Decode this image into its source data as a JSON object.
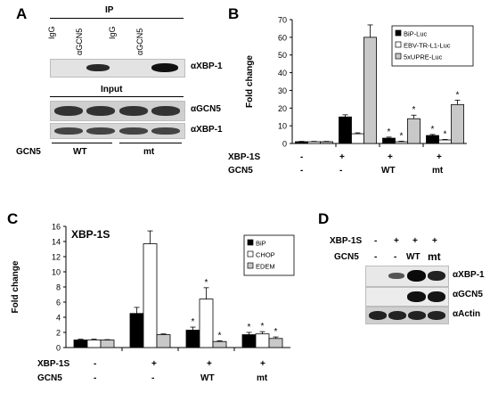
{
  "panels": {
    "A": {
      "letter": "A",
      "ip_title": "IP",
      "ip_lanes": [
        "IgG",
        "αGCN5",
        "IgG",
        "αGCN5"
      ],
      "ip_blot_label": "αXBP-1",
      "input_title": "Input",
      "input_labels": [
        "αGCN5",
        "αXBP-1"
      ],
      "row_label": "GCN5",
      "groups": [
        "WT",
        "mt"
      ]
    },
    "B": {
      "letter": "B",
      "row_labels": [
        "XBP-1S",
        "GCN5"
      ],
      "xbp_signs": [
        "-",
        "+",
        "+",
        "+"
      ],
      "gcn5_signs": [
        "-",
        "-",
        "WT",
        "mt"
      ]
    },
    "C": {
      "letter": "C",
      "row_labels": [
        "XBP-1S",
        "GCN5"
      ],
      "xbp_signs": [
        "-",
        "+",
        "+",
        "+"
      ],
      "gcn5_signs": [
        "-",
        "-",
        "WT",
        "mt"
      ]
    },
    "D": {
      "letter": "D",
      "row_labels": [
        "XBP-1S",
        "GCN5"
      ],
      "xbp_signs": [
        "-",
        "+",
        "+",
        "+"
      ],
      "gcn5_signs": [
        "-",
        "-",
        "WT",
        "mt"
      ],
      "blot_labels": [
        "αXBP-1",
        "αGCN5",
        "αActin"
      ]
    }
  },
  "colors": {
    "black": "#000000",
    "white": "#ffffff",
    "gray": "#c8c8c8"
  },
  "chart_data": [
    {
      "panel": "B",
      "type": "bar",
      "title": "",
      "xlabel": "",
      "ylabel": "Fold change",
      "ylim": [
        0,
        70
      ],
      "yticks": [
        0,
        10,
        20,
        30,
        40,
        50,
        60,
        70
      ],
      "categories": [
        "-/-",
        "+/-",
        "+/WT",
        "+/mt"
      ],
      "legend_position": "top-right",
      "series": [
        {
          "name": "BiP-Luc",
          "color": "#000000",
          "values": [
            1,
            15,
            3,
            4.5
          ],
          "errors": [
            0.2,
            1.2,
            0.6,
            0.6
          ],
          "stars": [
            false,
            false,
            true,
            true
          ]
        },
        {
          "name": "EBV-TR-L1-Luc",
          "color": "#ffffff",
          "values": [
            1,
            5.5,
            1,
            2
          ],
          "errors": [
            0.2,
            0.5,
            0.3,
            0.3
          ],
          "stars": [
            false,
            false,
            true,
            true
          ]
        },
        {
          "name": "5xUPRE-Luc",
          "color": "#c8c8c8",
          "values": [
            1,
            60,
            14,
            22
          ],
          "errors": [
            0.2,
            7,
            2,
            2.5
          ],
          "stars": [
            false,
            false,
            true,
            true
          ]
        }
      ]
    },
    {
      "panel": "C",
      "type": "bar",
      "title": "XBP-1S",
      "xlabel": "",
      "ylabel": "Fold change",
      "ylim": [
        0,
        16
      ],
      "yticks": [
        0,
        2,
        4,
        6,
        8,
        10,
        12,
        14,
        16
      ],
      "categories": [
        "-/-",
        "+/-",
        "+/WT",
        "+/mt"
      ],
      "legend_position": "top-right",
      "series": [
        {
          "name": "BiP",
          "color": "#000000",
          "values": [
            1,
            4.5,
            2.3,
            1.7
          ],
          "errors": [
            0.1,
            0.8,
            0.4,
            0.3
          ],
          "stars": [
            false,
            false,
            true,
            true
          ]
        },
        {
          "name": "CHOP",
          "color": "#ffffff",
          "values": [
            1,
            13.7,
            6.4,
            1.8
          ],
          "errors": [
            0.1,
            1.7,
            1.5,
            0.3
          ],
          "stars": [
            false,
            false,
            true,
            true
          ]
        },
        {
          "name": "EDEM",
          "color": "#c8c8c8",
          "values": [
            1,
            1.7,
            0.8,
            1.2
          ],
          "errors": [
            0.05,
            0.1,
            0.1,
            0.2
          ],
          "stars": [
            false,
            false,
            true,
            true
          ]
        }
      ]
    }
  ]
}
